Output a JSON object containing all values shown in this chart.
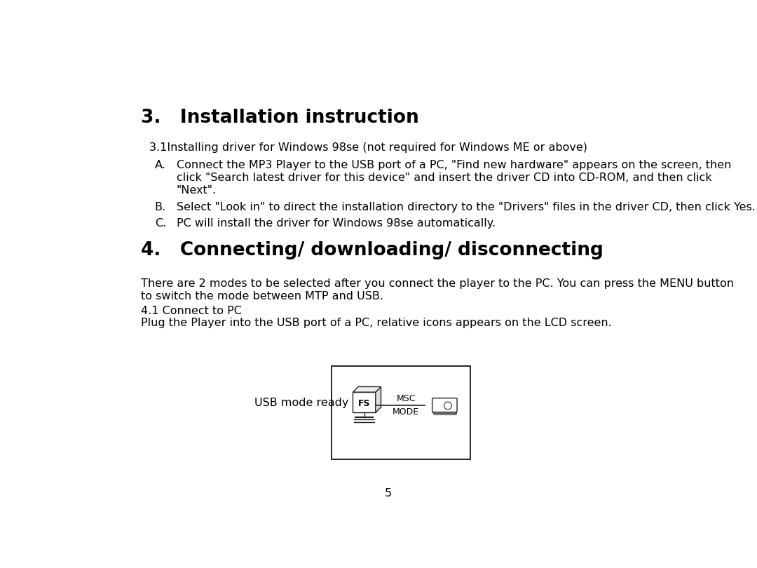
{
  "bg_color": "#ffffff",
  "text_color": "#000000",
  "page_number": "5",
  "section3_title": "3.   Installation instruction",
  "section3_sub": "3.1Installing driver for Windows 98se (not required for Windows ME or above)",
  "item_A_label": "A.",
  "item_A_line1": "Connect the MP3 Player to the USB port of a PC, \"Find new hardware\" appears on the screen, then",
  "item_A_line2": "click \"Search latest driver for this device\" and insert the driver CD into CD-ROM, and then click",
  "item_A_line3": "\"Next\".",
  "item_B_label": "B.",
  "item_B": "Select \"Look in\" to direct the installation directory to the \"Drivers\" files in the driver CD, then click Yes.",
  "item_C_label": "C.",
  "item_C": "PC will install the driver for Windows 98se automatically.",
  "section4_title": "4.   Connecting/ downloading/ disconnecting",
  "para1_line1": "There are 2 modes to be selected after you connect the player to the PC. You can press the MENU button",
  "para1_line2": "to switch the mode between MTP and USB.",
  "sub41": "4.1 Connect to PC",
  "sub41_desc": "Plug the Player into the USB port of a PC, relative icons appears on the LCD screen.",
  "usb_label": "USB mode ready",
  "diagram_msc": "MSC",
  "diagram_mode": "MODE",
  "diagram_fs": "FS"
}
